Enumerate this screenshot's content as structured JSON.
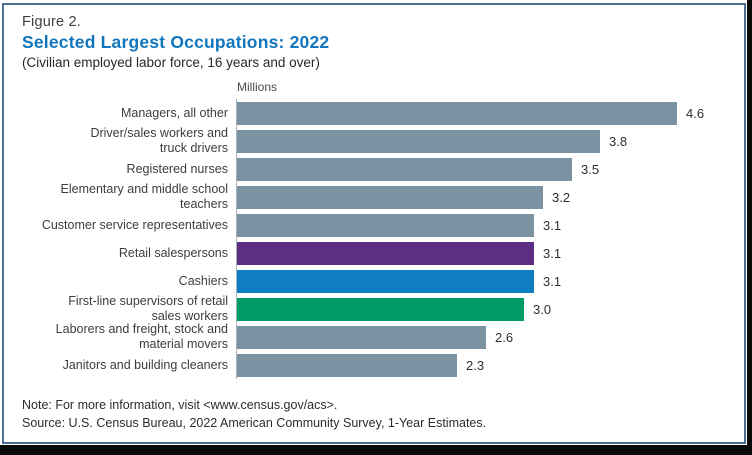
{
  "header": {
    "figure_label": "Figure 2.",
    "title": "Selected Largest Occupations: 2022",
    "subtitle": "(Civilian employed labor force, 16 years and over)"
  },
  "footer": {
    "note": "Note: For more information, visit <www.census.gov/acs>.",
    "source": "Source: U.S. Census Bureau, 2022  American Community Survey, 1-Year Estimates."
  },
  "colors": {
    "title_accent": "#1276bd",
    "frame_border": "#4d6f94",
    "axis_line": "#a9b2b9",
    "bar_default": "#7b92a2",
    "bar_purple": "#5c2f84",
    "bar_blue": "#0e7dc2",
    "bar_green": "#009c68",
    "edge_black": "#0a0a0a"
  },
  "chart_data": {
    "type": "bar",
    "orientation": "horizontal",
    "title": "Selected Largest Occupations: 2022",
    "xlabel": "Millions",
    "ylabel": "",
    "xlim": [
      0,
      4.8
    ],
    "grid": false,
    "legend": false,
    "unit_label": "Millions",
    "categories": [
      "Managers, all other",
      "Driver/sales workers and\ntruck drivers",
      "Registered nurses",
      "Elementary and middle school\nteachers",
      "Customer service representatives",
      "Retail salespersons",
      "Cashiers",
      "First-line supervisors of retail\nsales workers",
      "Laborers and freight, stock and\nmaterial movers",
      "Janitors and building cleaners"
    ],
    "values": [
      4.6,
      3.8,
      3.5,
      3.2,
      3.1,
      3.1,
      3.1,
      3.0,
      2.6,
      2.3
    ],
    "value_labels": [
      "4.6",
      "3.8",
      "3.5",
      "3.2",
      "3.1",
      "3.1",
      "3.1",
      "3.0",
      "2.6",
      "2.3"
    ],
    "bar_colors": [
      "#7b92a2",
      "#7b92a2",
      "#7b92a2",
      "#7b92a2",
      "#7b92a2",
      "#5c2f84",
      "#0e7dc2",
      "#009c68",
      "#7b92a2",
      "#7b92a2"
    ]
  }
}
